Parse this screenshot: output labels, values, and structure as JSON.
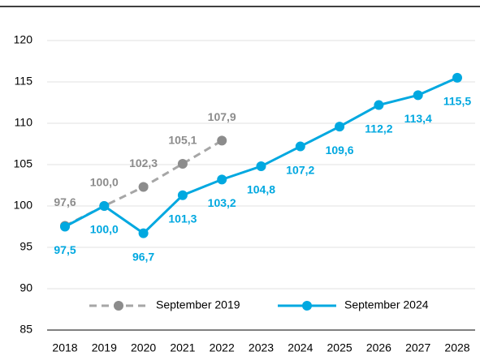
{
  "chart_data": {
    "type": "line",
    "categories": [
      "2018",
      "2019",
      "2020",
      "2021",
      "2022",
      "2023",
      "2024",
      "2025",
      "2026",
      "2027",
      "2028"
    ],
    "series": [
      {
        "name": "September 2019",
        "color": "#a6a6a6",
        "marker_color": "#8c8c8c",
        "dashed": true,
        "values": [
          97.6,
          100.0,
          102.3,
          105.1,
          107.9,
          null,
          null,
          null,
          null,
          null,
          null
        ],
        "value_labels": [
          "97,6",
          "100,0",
          "102,3",
          "105,1",
          "107,9",
          null,
          null,
          null,
          null,
          null,
          null
        ]
      },
      {
        "name": "September 2024",
        "color": "#00a8e0",
        "marker_color": "#00a8e0",
        "dashed": false,
        "values": [
          97.5,
          100.0,
          96.7,
          101.3,
          103.2,
          104.8,
          107.2,
          109.6,
          112.2,
          113.4,
          115.5
        ],
        "value_labels": [
          "97,5",
          "100,0",
          "96,7",
          "101,3",
          "103,2",
          "104,8",
          "107,2",
          "109,6",
          "112,2",
          "113,4",
          "115,5"
        ]
      }
    ],
    "ylim": [
      85,
      120
    ],
    "yticks": [
      85,
      90,
      95,
      100,
      105,
      110,
      115,
      120
    ],
    "grid": true,
    "legend": "bottom"
  }
}
